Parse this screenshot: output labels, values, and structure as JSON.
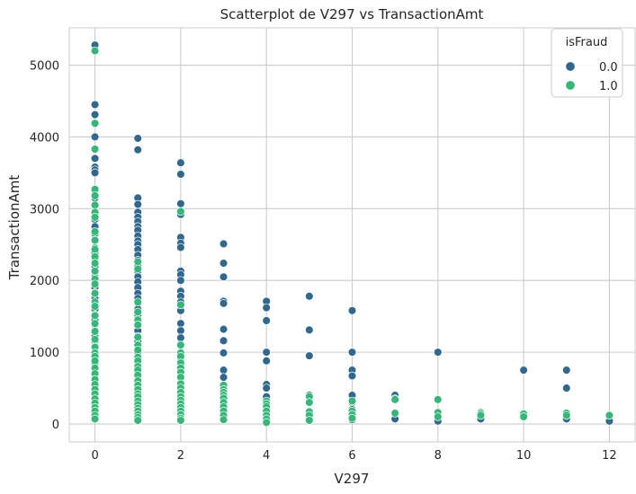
{
  "chart_data": {
    "type": "scatter",
    "title": "Scatterplot de V297 vs TransactionAmt",
    "xlabel": "V297",
    "ylabel": "TransactionAmt",
    "xlim": [
      -0.6,
      12.6
    ],
    "ylim": [
      -250,
      5520
    ],
    "xticks": [
      0,
      2,
      4,
      6,
      8,
      10,
      12
    ],
    "yticks": [
      0,
      1000,
      2000,
      3000,
      4000,
      5000
    ],
    "grid": true,
    "legend": {
      "title": "isFraud",
      "placement": "top-right"
    },
    "series": [
      {
        "name": "0.0",
        "color": "#31688e",
        "points": [
          [
            0,
            5280
          ],
          [
            0,
            4450
          ],
          [
            0,
            4310
          ],
          [
            0,
            4180
          ],
          [
            0,
            4000
          ],
          [
            0,
            3820
          ],
          [
            0,
            3700
          ],
          [
            0,
            3580
          ],
          [
            0,
            3540
          ],
          [
            0,
            3500
          ],
          [
            0,
            3250
          ],
          [
            0,
            3150
          ],
          [
            0,
            3050
          ],
          [
            0,
            2950
          ],
          [
            0,
            2850
          ],
          [
            0,
            2750
          ],
          [
            0,
            2650
          ],
          [
            0,
            2550
          ],
          [
            0,
            2450
          ],
          [
            0,
            2380
          ],
          [
            0,
            2300
          ],
          [
            0,
            2200
          ],
          [
            0,
            2120
          ],
          [
            0,
            2050
          ],
          [
            0,
            1980
          ],
          [
            0,
            1900
          ],
          [
            0,
            1830
          ],
          [
            0,
            1750
          ],
          [
            0,
            1680
          ],
          [
            0,
            1600
          ],
          [
            0,
            1520
          ],
          [
            0,
            1450
          ],
          [
            0,
            1380
          ],
          [
            0,
            1300
          ],
          [
            0,
            1220
          ],
          [
            0,
            1150
          ],
          [
            0,
            1080
          ],
          [
            0,
            1000
          ],
          [
            0,
            920
          ],
          [
            0,
            850
          ],
          [
            0,
            780
          ],
          [
            0,
            700
          ],
          [
            0,
            620
          ],
          [
            0,
            540
          ],
          [
            0,
            460
          ],
          [
            0,
            380
          ],
          [
            0,
            300
          ],
          [
            0,
            220
          ],
          [
            0,
            150
          ],
          [
            0,
            80
          ],
          [
            1,
            3980
          ],
          [
            1,
            3820
          ],
          [
            1,
            3150
          ],
          [
            1,
            3060
          ],
          [
            1,
            2950
          ],
          [
            1,
            2880
          ],
          [
            1,
            2820
          ],
          [
            1,
            2750
          ],
          [
            1,
            2700
          ],
          [
            1,
            2620
          ],
          [
            1,
            2550
          ],
          [
            1,
            2500
          ],
          [
            1,
            2430
          ],
          [
            1,
            2350
          ],
          [
            1,
            2280
          ],
          [
            1,
            2200
          ],
          [
            1,
            2130
          ],
          [
            1,
            2050
          ],
          [
            1,
            1980
          ],
          [
            1,
            1900
          ],
          [
            1,
            1820
          ],
          [
            1,
            1750
          ],
          [
            1,
            1680
          ],
          [
            1,
            1600
          ],
          [
            1,
            1520
          ],
          [
            1,
            1450
          ],
          [
            1,
            1380
          ],
          [
            1,
            1300
          ],
          [
            1,
            1220
          ],
          [
            1,
            1150
          ],
          [
            1,
            1080
          ],
          [
            1,
            1000
          ],
          [
            1,
            920
          ],
          [
            1,
            850
          ],
          [
            1,
            780
          ],
          [
            1,
            700
          ],
          [
            1,
            620
          ],
          [
            1,
            540
          ],
          [
            1,
            460
          ],
          [
            1,
            380
          ],
          [
            1,
            300
          ],
          [
            1,
            220
          ],
          [
            1,
            150
          ],
          [
            1,
            80
          ],
          [
            1,
            40
          ],
          [
            2,
            3640
          ],
          [
            2,
            3480
          ],
          [
            2,
            3070
          ],
          [
            2,
            2950
          ],
          [
            2,
            2920
          ],
          [
            2,
            2600
          ],
          [
            2,
            2520
          ],
          [
            2,
            2460
          ],
          [
            2,
            2130
          ],
          [
            2,
            2080
          ],
          [
            2,
            2000
          ],
          [
            2,
            1850
          ],
          [
            2,
            1780
          ],
          [
            2,
            1700
          ],
          [
            2,
            1650
          ],
          [
            2,
            1580
          ],
          [
            2,
            1400
          ],
          [
            2,
            1300
          ],
          [
            2,
            1200
          ],
          [
            2,
            1100
          ],
          [
            2,
            1000
          ],
          [
            2,
            950
          ],
          [
            2,
            880
          ],
          [
            2,
            800
          ],
          [
            2,
            720
          ],
          [
            2,
            650
          ],
          [
            2,
            560
          ],
          [
            2,
            480
          ],
          [
            2,
            400
          ],
          [
            2,
            320
          ],
          [
            2,
            240
          ],
          [
            2,
            160
          ],
          [
            2,
            80
          ],
          [
            3,
            2510
          ],
          [
            3,
            2240
          ],
          [
            3,
            2050
          ],
          [
            3,
            1710
          ],
          [
            3,
            1680
          ],
          [
            3,
            1320
          ],
          [
            3,
            1160
          ],
          [
            3,
            990
          ],
          [
            3,
            750
          ],
          [
            3,
            650
          ],
          [
            3,
            530
          ],
          [
            3,
            460
          ],
          [
            3,
            400
          ],
          [
            3,
            330
          ],
          [
            3,
            260
          ],
          [
            3,
            180
          ],
          [
            3,
            100
          ],
          [
            4,
            1710
          ],
          [
            4,
            1620
          ],
          [
            4,
            1440
          ],
          [
            4,
            1000
          ],
          [
            4,
            880
          ],
          [
            4,
            550
          ],
          [
            4,
            500
          ],
          [
            4,
            380
          ],
          [
            4,
            300
          ],
          [
            4,
            200
          ],
          [
            4,
            120
          ],
          [
            4,
            60
          ],
          [
            5,
            1780
          ],
          [
            5,
            1310
          ],
          [
            5,
            950
          ],
          [
            5,
            400
          ],
          [
            5,
            300
          ],
          [
            5,
            150
          ],
          [
            5,
            80
          ],
          [
            6,
            1580
          ],
          [
            6,
            1000
          ],
          [
            6,
            750
          ],
          [
            6,
            670
          ],
          [
            6,
            400
          ],
          [
            6,
            300
          ],
          [
            6,
            200
          ],
          [
            6,
            120
          ],
          [
            6,
            60
          ],
          [
            7,
            400
          ],
          [
            7,
            350
          ],
          [
            7,
            70
          ],
          [
            8,
            1000
          ],
          [
            8,
            150
          ],
          [
            8,
            40
          ],
          [
            9,
            130
          ],
          [
            9,
            100
          ],
          [
            9,
            70
          ],
          [
            10,
            750
          ],
          [
            10,
            130
          ],
          [
            10,
            110
          ],
          [
            11,
            750
          ],
          [
            11,
            500
          ],
          [
            11,
            100
          ],
          [
            11,
            70
          ],
          [
            12,
            120
          ],
          [
            12,
            40
          ]
        ]
      },
      {
        "name": "1.0",
        "color": "#35b779",
        "points": [
          [
            0,
            5200
          ],
          [
            0,
            4190
          ],
          [
            0,
            3830
          ],
          [
            0,
            3270
          ],
          [
            0,
            3180
          ],
          [
            0,
            3050
          ],
          [
            0,
            2950
          ],
          [
            0,
            2880
          ],
          [
            0,
            2680
          ],
          [
            0,
            2560
          ],
          [
            0,
            2430
          ],
          [
            0,
            2330
          ],
          [
            0,
            2240
          ],
          [
            0,
            2130
          ],
          [
            0,
            2020
          ],
          [
            0,
            1950
          ],
          [
            0,
            1820
          ],
          [
            0,
            1700
          ],
          [
            0,
            1640
          ],
          [
            0,
            1510
          ],
          [
            0,
            1400
          ],
          [
            0,
            1290
          ],
          [
            0,
            1180
          ],
          [
            0,
            1070
          ],
          [
            0,
            990
          ],
          [
            0,
            940
          ],
          [
            0,
            880
          ],
          [
            0,
            780
          ],
          [
            0,
            700
          ],
          [
            0,
            620
          ],
          [
            0,
            550
          ],
          [
            0,
            480
          ],
          [
            0,
            420
          ],
          [
            0,
            350
          ],
          [
            0,
            290
          ],
          [
            0,
            230
          ],
          [
            0,
            180
          ],
          [
            0,
            120
          ],
          [
            0,
            70
          ],
          [
            1,
            2260
          ],
          [
            1,
            2160
          ],
          [
            1,
            1700
          ],
          [
            1,
            1560
          ],
          [
            1,
            1450
          ],
          [
            1,
            1380
          ],
          [
            1,
            1210
          ],
          [
            1,
            1100
          ],
          [
            1,
            1030
          ],
          [
            1,
            930
          ],
          [
            1,
            880
          ],
          [
            1,
            800
          ],
          [
            1,
            750
          ],
          [
            1,
            680
          ],
          [
            1,
            600
          ],
          [
            1,
            540
          ],
          [
            1,
            480
          ],
          [
            1,
            420
          ],
          [
            1,
            380
          ],
          [
            1,
            320
          ],
          [
            1,
            270
          ],
          [
            1,
            220
          ],
          [
            1,
            180
          ],
          [
            1,
            130
          ],
          [
            1,
            90
          ],
          [
            1,
            50
          ],
          [
            2,
            2960
          ],
          [
            2,
            1660
          ],
          [
            2,
            1100
          ],
          [
            2,
            990
          ],
          [
            2,
            940
          ],
          [
            2,
            850
          ],
          [
            2,
            780
          ],
          [
            2,
            720
          ],
          [
            2,
            650
          ],
          [
            2,
            560
          ],
          [
            2,
            500
          ],
          [
            2,
            440
          ],
          [
            2,
            380
          ],
          [
            2,
            330
          ],
          [
            2,
            280
          ],
          [
            2,
            230
          ],
          [
            2,
            180
          ],
          [
            2,
            130
          ],
          [
            2,
            80
          ],
          [
            2,
            50
          ],
          [
            3,
            540
          ],
          [
            3,
            480
          ],
          [
            3,
            440
          ],
          [
            3,
            400
          ],
          [
            3,
            360
          ],
          [
            3,
            300
          ],
          [
            3,
            240
          ],
          [
            3,
            180
          ],
          [
            3,
            120
          ],
          [
            3,
            60
          ],
          [
            4,
            320
          ],
          [
            4,
            280
          ],
          [
            4,
            240
          ],
          [
            4,
            180
          ],
          [
            4,
            120
          ],
          [
            4,
            70
          ],
          [
            4,
            20
          ],
          [
            5,
            380
          ],
          [
            5,
            300
          ],
          [
            5,
            170
          ],
          [
            5,
            120
          ],
          [
            5,
            50
          ],
          [
            6,
            320
          ],
          [
            6,
            180
          ],
          [
            6,
            130
          ],
          [
            6,
            80
          ],
          [
            7,
            340
          ],
          [
            7,
            150
          ],
          [
            8,
            340
          ],
          [
            8,
            160
          ],
          [
            8,
            100
          ],
          [
            9,
            160
          ],
          [
            9,
            140
          ],
          [
            9,
            120
          ],
          [
            10,
            140
          ],
          [
            10,
            100
          ],
          [
            11,
            150
          ],
          [
            11,
            120
          ],
          [
            12,
            120
          ]
        ]
      }
    ]
  }
}
